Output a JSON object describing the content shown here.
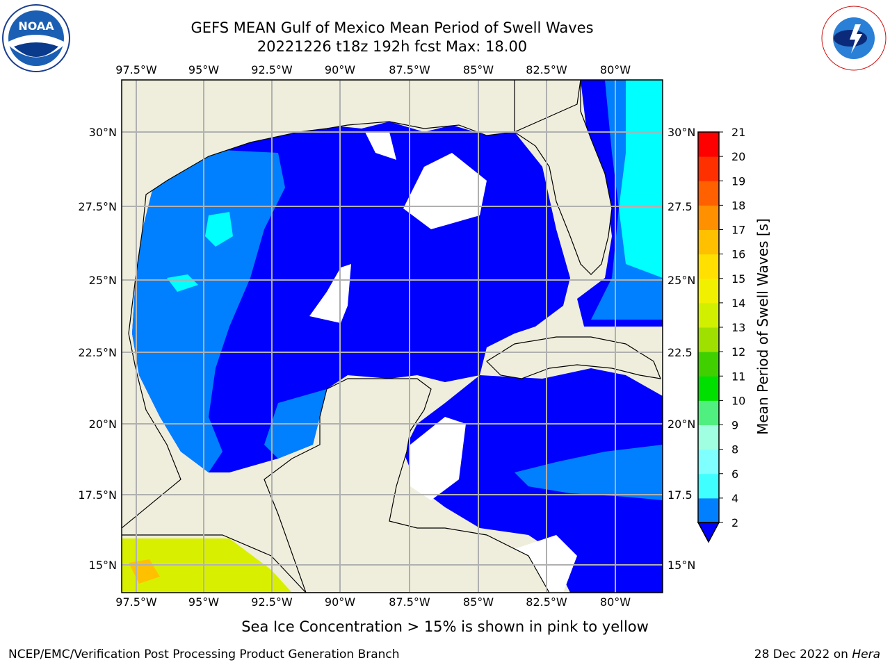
{
  "title": {
    "line1": "GEFS MEAN Gulf of Mexico Mean Period of Swell Waves",
    "line2": "20221226 t18z 192h fcst   Max: 18.00"
  },
  "map": {
    "lon_labels": [
      "97.5°W",
      "95°W",
      "92.5°W",
      "90°W",
      "87.5°W",
      "85°W",
      "82.5°W",
      "80°W"
    ],
    "lat_labels_left": [
      "30°N",
      "27.5°N",
      "25°N",
      "22.5°N",
      "20°N",
      "17.5°N",
      "15°N"
    ],
    "lat_labels_right": [
      "30°N",
      "27.5",
      "25°N",
      "22.5",
      "20°N",
      "17.5",
      "15°N"
    ],
    "colors": {
      "land": "#efeedc",
      "ocean_low": "#0000ff",
      "ocean_mid": "#0080ff",
      "ocean_cyan": "#00ffff",
      "ocean_pale": "#80ffff",
      "grid": "#b0b0b0"
    }
  },
  "colorbar": {
    "title": "Mean Period of Swell Waves [s]",
    "ticks": [
      "2",
      "4",
      "6",
      "8",
      "9",
      "10",
      "11",
      "12",
      "13",
      "14",
      "15",
      "16",
      "17",
      "18",
      "19",
      "20",
      "21"
    ],
    "colors": [
      "#0080ff",
      "#00ffff",
      "#40ffff",
      "#80ffff",
      "#a0ffe0",
      "#50f080",
      "#00e000",
      "#40d000",
      "#a0e000",
      "#d0f000",
      "#f0f000",
      "#ffe000",
      "#ffc000",
      "#ff9000",
      "#ff6000",
      "#ff3000",
      "#ff0000"
    ],
    "extend_color": "#0000ff"
  },
  "footer": {
    "ice_note": "Sea Ice Concentration > 15% is shown in pink to yellow",
    "credit": "NCEP/EMC/Verification Post Processing Product Generation Branch",
    "date_prefix": "28 Dec 2022 on ",
    "date_host": "Hera"
  },
  "logos": {
    "left": "noaa-logo",
    "right": "national-weather-service-logo"
  }
}
